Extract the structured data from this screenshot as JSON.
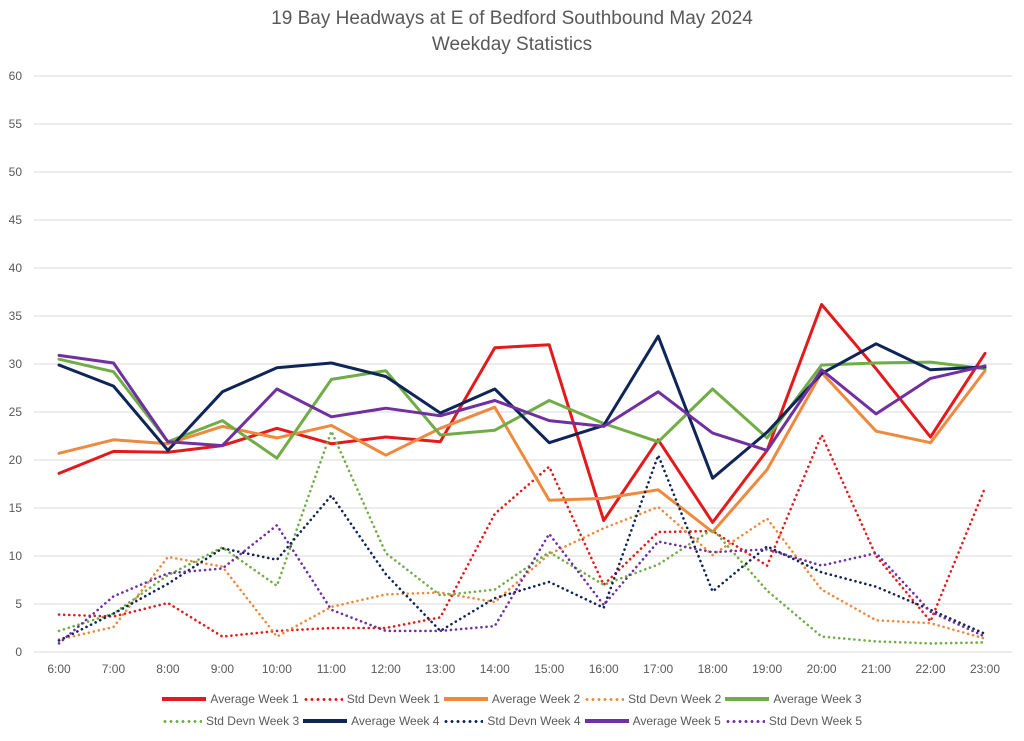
{
  "chart_data": {
    "type": "line",
    "title": "19 Bay Headways at E of Bedford Southbound May 2024",
    "subtitle": "Weekday Statistics",
    "xlabel": "",
    "ylabel": "",
    "ylim": [
      0,
      60
    ],
    "yticks": [
      "0",
      "5",
      "10",
      "15",
      "20",
      "25",
      "30",
      "35",
      "40",
      "45",
      "50",
      "55",
      "60"
    ],
    "grid": true,
    "legend_position": "bottom",
    "categories": [
      "6:00",
      "7:00",
      "8:00",
      "9:00",
      "10:00",
      "11:00",
      "12:00",
      "13:00",
      "14:00",
      "15:00",
      "16:00",
      "17:00",
      "18:00",
      "19:00",
      "20:00",
      "21:00",
      "22:00",
      "23:00"
    ],
    "series": [
      {
        "name": "Average Week 1",
        "color": "#e31a1c",
        "style": "solid",
        "values": [
          18.6,
          20.9,
          20.8,
          21.5,
          23.3,
          21.7,
          22.4,
          21.9,
          31.7,
          32.0,
          13.7,
          22.1,
          13.5,
          21.0,
          36.2,
          29.5,
          22.4,
          31.1
        ]
      },
      {
        "name": "Std Devn Week 1",
        "color": "#e31a1c",
        "style": "dotted",
        "values": [
          3.9,
          3.7,
          5.1,
          1.6,
          2.2,
          2.5,
          2.5,
          3.6,
          14.4,
          19.3,
          7.0,
          12.5,
          12.6,
          9.0,
          22.6,
          10.0,
          3.2,
          17.1
        ]
      },
      {
        "name": "Average Week 2",
        "color": "#ed8a3f",
        "style": "solid",
        "values": [
          20.7,
          22.1,
          21.7,
          23.5,
          22.3,
          23.6,
          20.5,
          23.3,
          25.5,
          15.8,
          16.0,
          16.9,
          12.5,
          19.0,
          29.1,
          23.0,
          21.8,
          29.3
        ]
      },
      {
        "name": "Std Devn Week 2",
        "color": "#ed8a3f",
        "style": "dotted",
        "values": [
          1.3,
          2.6,
          9.9,
          8.9,
          1.6,
          4.7,
          6.0,
          6.2,
          5.2,
          10.2,
          12.9,
          15.1,
          10.1,
          13.9,
          6.5,
          3.3,
          3.0,
          1.4
        ]
      },
      {
        "name": "Average Week 3",
        "color": "#70ad47",
        "style": "solid",
        "values": [
          30.5,
          29.2,
          21.9,
          24.1,
          20.2,
          28.4,
          29.3,
          22.6,
          23.1,
          26.2,
          23.8,
          21.9,
          27.4,
          22.3,
          29.9,
          30.1,
          30.2,
          29.5
        ]
      },
      {
        "name": "Std Devn Week 3",
        "color": "#70ad47",
        "style": "dotted",
        "values": [
          2.2,
          4.0,
          8.0,
          10.9,
          6.9,
          23.0,
          10.3,
          5.9,
          6.5,
          10.4,
          7.0,
          9.1,
          12.8,
          6.4,
          1.6,
          1.1,
          0.9,
          1.0
        ]
      },
      {
        "name": "Average Week 4",
        "color": "#0f2557",
        "style": "solid",
        "values": [
          29.9,
          27.7,
          21.0,
          27.1,
          29.6,
          30.1,
          28.7,
          24.9,
          27.4,
          21.8,
          23.6,
          32.9,
          18.1,
          22.9,
          29.0,
          32.1,
          29.4,
          29.7
        ]
      },
      {
        "name": "Std Devn Week 4",
        "color": "#0f2557",
        "style": "dotted",
        "values": [
          1.2,
          4.0,
          7.1,
          10.8,
          9.6,
          16.3,
          8.1,
          2.2,
          5.6,
          7.3,
          4.6,
          20.5,
          6.3,
          11.0,
          8.3,
          6.8,
          4.4,
          1.9
        ]
      },
      {
        "name": "Average Week 5",
        "color": "#7030a0",
        "style": "solid",
        "values": [
          30.9,
          30.1,
          21.9,
          21.5,
          27.4,
          24.5,
          25.4,
          24.6,
          26.2,
          24.1,
          23.5,
          27.1,
          22.8,
          21.0,
          29.4,
          24.8,
          28.5,
          29.8
        ]
      },
      {
        "name": "Std Devn Week 5",
        "color": "#7030a0",
        "style": "dotted",
        "values": [
          0.9,
          5.8,
          8.2,
          8.7,
          13.2,
          4.4,
          2.2,
          2.2,
          2.7,
          12.3,
          4.9,
          11.5,
          10.4,
          10.7,
          9.0,
          10.3,
          4.2,
          1.6
        ]
      }
    ]
  }
}
